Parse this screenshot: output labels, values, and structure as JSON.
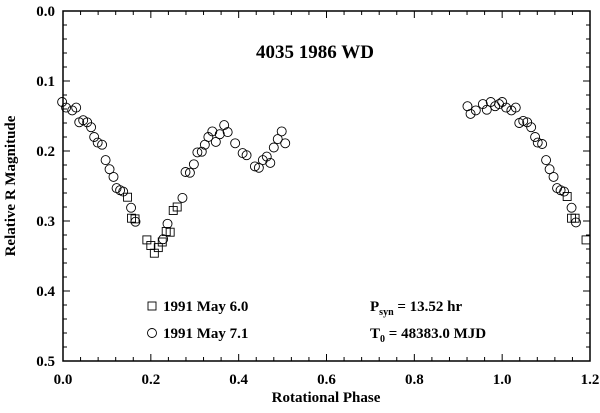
{
  "chart_data": {
    "type": "scatter",
    "title": "4035 1986 WD",
    "xlabel": "Rotational Phase",
    "ylabel": "Relative R Magnitude",
    "xlim": [
      0.0,
      1.2
    ],
    "ylim": [
      0.5,
      0.0
    ],
    "y_inverted": true,
    "grid": false,
    "x_ticks": [
      "0.0",
      "0.2",
      "0.4",
      "0.6",
      "0.8",
      "1.0",
      "1.2"
    ],
    "x_tick_values": [
      0,
      0.2,
      0.4,
      0.6,
      0.8,
      1.0,
      1.2
    ],
    "y_ticks": [
      "0.0",
      "0.1",
      "0.2",
      "0.3",
      "0.4",
      "0.5"
    ],
    "y_tick_values": [
      0,
      0.1,
      0.2,
      0.3,
      0.4,
      0.5
    ],
    "legend_placement": "bottom-left",
    "series": [
      {
        "name": "1991 May 6.0",
        "marker": "square",
        "x": [
          0.147,
          0.156,
          0.164,
          0.191,
          0.2,
          0.208,
          0.217,
          0.226,
          0.235,
          0.244,
          0.251,
          0.26,
          1.148,
          1.158,
          1.166,
          1.191
        ],
        "y": [
          0.266,
          0.296,
          0.297,
          0.327,
          0.335,
          0.346,
          0.338,
          0.33,
          0.315,
          0.316,
          0.285,
          0.28,
          0.265,
          0.296,
          0.296,
          0.327
        ]
      },
      {
        "name": "1991 May 7.1",
        "marker": "circle",
        "x": [
          -0.002,
          0.007,
          0.021,
          0.03,
          0.037,
          0.046,
          0.055,
          0.064,
          0.071,
          0.079,
          0.089,
          0.097,
          0.106,
          0.115,
          0.122,
          0.13,
          0.137,
          0.155,
          0.165,
          0.228,
          0.238,
          0.272,
          0.279,
          0.289,
          0.298,
          0.306,
          0.316,
          0.323,
          0.331,
          0.34,
          0.348,
          0.357,
          0.367,
          0.375,
          0.392,
          0.409,
          0.418,
          0.437,
          0.446,
          0.455,
          0.464,
          0.472,
          0.48,
          0.489,
          0.498,
          0.506,
          0.921,
          0.928,
          0.94,
          0.956,
          0.965,
          0.974,
          0.984,
          0.993,
          1.0,
          1.009,
          1.021,
          1.031,
          1.039,
          1.048,
          1.057,
          1.066,
          1.075,
          1.081,
          1.091,
          1.1,
          1.108,
          1.117,
          1.125,
          1.133,
          1.141,
          1.158,
          1.168
        ],
        "y": [
          0.13,
          0.138,
          0.142,
          0.138,
          0.159,
          0.156,
          0.159,
          0.166,
          0.18,
          0.188,
          0.191,
          0.213,
          0.226,
          0.237,
          0.253,
          0.256,
          0.258,
          0.281,
          0.301,
          0.326,
          0.304,
          0.267,
          0.23,
          0.231,
          0.219,
          0.202,
          0.201,
          0.191,
          0.18,
          0.172,
          0.187,
          0.176,
          0.163,
          0.173,
          0.189,
          0.203,
          0.206,
          0.222,
          0.224,
          0.213,
          0.208,
          0.217,
          0.195,
          0.183,
          0.172,
          0.189,
          0.136,
          0.147,
          0.142,
          0.133,
          0.141,
          0.13,
          0.136,
          0.133,
          0.13,
          0.138,
          0.142,
          0.138,
          0.16,
          0.157,
          0.159,
          0.166,
          0.18,
          0.188,
          0.19,
          0.213,
          0.226,
          0.237,
          0.253,
          0.256,
          0.258,
          0.281,
          0.302
        ]
      }
    ],
    "annotations": {
      "period_label": "P",
      "period_sub": "syn",
      "period_value": " = 13.52 hr",
      "epoch_label": "T",
      "epoch_sub": "0",
      "epoch_value": " = 48383.0 MJD"
    }
  }
}
